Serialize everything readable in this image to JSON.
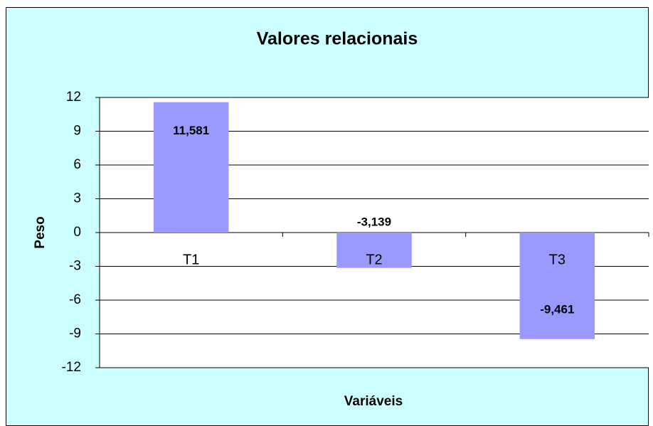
{
  "chart_data": {
    "type": "bar",
    "title": "Valores relacionais",
    "x_label": "Variáveis",
    "y_label": "Peso",
    "categories": [
      "T1",
      "T2",
      "T3"
    ],
    "values": [
      11.581,
      -3.139,
      -9.461
    ],
    "value_labels": [
      "11,581",
      "-3,139",
      "-9,461"
    ],
    "color": "#9999ff",
    "ylim": [
      -12,
      12
    ],
    "yticks": [
      -12,
      -9,
      -6,
      -3,
      0,
      3,
      6,
      9,
      12
    ],
    "grid": true
  }
}
